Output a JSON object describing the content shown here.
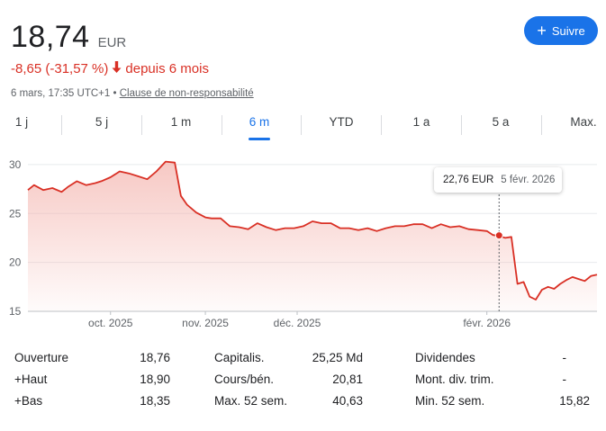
{
  "quote": {
    "price": "18,74",
    "currency": "EUR",
    "change": "-8,65 (-31,57 %)",
    "change_arrow": "arrow-down-icon",
    "period_text": "depuis 6 mois",
    "timestamp": "6 mars, 17:35 UTC+1",
    "separator": "•",
    "disclaimer": "Clause de non-responsabilité"
  },
  "follow_button": {
    "label": "Suivre",
    "icon": "plus-icon"
  },
  "tabs": [
    {
      "label": "1 j"
    },
    {
      "label": "5 j"
    },
    {
      "label": "1 m"
    },
    {
      "label": "6 m",
      "active": true
    },
    {
      "label": "YTD"
    },
    {
      "label": "1 a"
    },
    {
      "label": "5 a"
    },
    {
      "label": "Max."
    }
  ],
  "tooltip": {
    "price": "22,76 EUR",
    "date": "5 févr. 2026"
  },
  "colors": {
    "line": "#d93025",
    "accent": "#1a73e8",
    "fill_top": "#f4b6b0"
  },
  "chart_data": {
    "type": "area",
    "title": "",
    "xlabel": "",
    "ylabel": "",
    "ylim": [
      15,
      31
    ],
    "yticks": [
      15,
      20,
      25,
      30
    ],
    "xtick_labels": [
      "oct. 2025",
      "nov. 2025",
      "déc. 2025",
      "févr. 2026"
    ],
    "xtick_days": [
      27,
      58,
      88,
      150
    ],
    "x_days_range": [
      0,
      186
    ],
    "grid": true,
    "series": [
      {
        "days": [
          0,
          2,
          5,
          8,
          11,
          13,
          16,
          19,
          22,
          24,
          27,
          30,
          33,
          36,
          39,
          42,
          45,
          48,
          50,
          52,
          55,
          58,
          60,
          63,
          66,
          69,
          72,
          75,
          78,
          81,
          84,
          87,
          90,
          93,
          96,
          99,
          102,
          105,
          108,
          111,
          114,
          117,
          120,
          123,
          126,
          129,
          132,
          135,
          138,
          141,
          144,
          147,
          150,
          152,
          154,
          156,
          158,
          160,
          162,
          164,
          166,
          168,
          170,
          172,
          174,
          176,
          178,
          180,
          182,
          184,
          186
        ],
        "values": [
          27.4,
          27.9,
          27.4,
          27.6,
          27.2,
          27.7,
          28.3,
          27.9,
          28.1,
          28.3,
          28.7,
          29.3,
          29.1,
          28.8,
          28.5,
          29.3,
          30.3,
          30.2,
          26.8,
          25.9,
          25.1,
          24.6,
          24.5,
          24.5,
          23.7,
          23.6,
          23.4,
          24.0,
          23.6,
          23.3,
          23.5,
          23.5,
          23.7,
          24.2,
          24.0,
          24.0,
          23.5,
          23.5,
          23.3,
          23.5,
          23.2,
          23.5,
          23.7,
          23.7,
          23.9,
          23.9,
          23.5,
          23.9,
          23.6,
          23.7,
          23.4,
          23.3,
          23.2,
          22.8,
          22.7,
          22.5,
          22.6,
          17.8,
          18.0,
          16.5,
          16.2,
          17.2,
          17.5,
          17.3,
          17.8,
          18.2,
          18.5,
          18.3,
          18.1,
          18.6,
          18.74
        ]
      }
    ],
    "highlight": {
      "day": 154,
      "value": 22.76
    }
  },
  "stats": {
    "col1": [
      {
        "label": "Ouverture",
        "value": "18,76"
      },
      {
        "label": "+Haut",
        "value": "18,90"
      },
      {
        "label": "+Bas",
        "value": "18,35"
      }
    ],
    "col2": [
      {
        "label": "Capitalis.",
        "value": "25,25 Md"
      },
      {
        "label": "Cours/bén.",
        "value": "20,81"
      },
      {
        "label": "Max. 52 sem.",
        "value": "40,63"
      }
    ],
    "col3": [
      {
        "label": "Dividendes",
        "value": "-"
      },
      {
        "label": "Mont. div. trim.",
        "value": "-"
      },
      {
        "label": "Min. 52 sem.",
        "value": "15,82"
      }
    ]
  }
}
